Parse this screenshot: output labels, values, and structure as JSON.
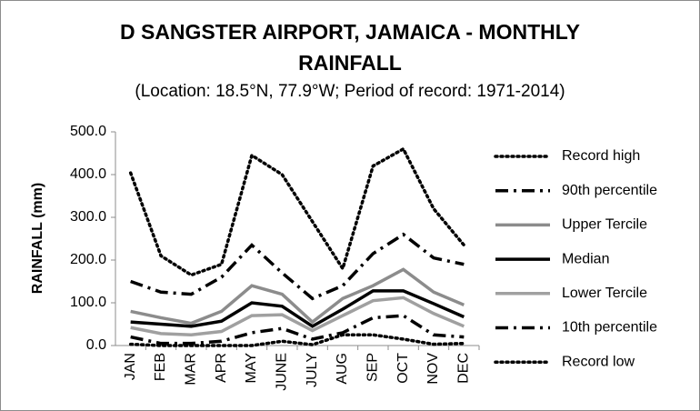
{
  "chart_data": {
    "type": "line",
    "title": "D SANGSTER AIRPORT, JAMAICA - MONTHLY RAINFALL",
    "subtitle": "(Location: 18.5°N, 77.9°W; Period of record: 1971-2014)",
    "y_label": "RAINFALL (mm)",
    "categories": [
      "JAN",
      "FEB",
      "MAR",
      "APR",
      "MAY",
      "JUNE",
      "JULY",
      "AUG",
      "SEP",
      "OCT",
      "NOV",
      "DEC"
    ],
    "ylim": [
      0,
      500
    ],
    "yticks": [
      {
        "value": 0,
        "label": "0.0"
      },
      {
        "value": 100,
        "label": "100.0"
      },
      {
        "value": 200,
        "label": "200.0"
      },
      {
        "value": 300,
        "label": "300.0"
      },
      {
        "value": 400,
        "label": "400.0"
      },
      {
        "value": 500,
        "label": "500.0"
      }
    ],
    "grid": false,
    "legend": "right",
    "series": [
      {
        "name": "Record high",
        "color": "#000000",
        "dash": "dotted",
        "values": [
          404,
          210,
          165,
          190,
          445,
          400,
          290,
          180,
          420,
          460,
          320,
          235
        ]
      },
      {
        "name": "90th percentile",
        "color": "#000000",
        "dash": "dashdot",
        "values": [
          150,
          125,
          120,
          160,
          235,
          170,
          110,
          140,
          215,
          260,
          205,
          190
        ]
      },
      {
        "name": "Upper Tercile",
        "color": "#8c8c8c",
        "dash": "solid",
        "values": [
          80,
          65,
          52,
          80,
          140,
          120,
          55,
          110,
          140,
          178,
          125,
          95
        ]
      },
      {
        "name": "Median",
        "color": "#000000",
        "dash": "solid",
        "values": [
          55,
          50,
          45,
          57,
          100,
          92,
          45,
          85,
          128,
          128,
          98,
          67
        ]
      },
      {
        "name": "Lower Tercile",
        "color": "#a0a0a0",
        "dash": "solid",
        "values": [
          42,
          28,
          25,
          33,
          70,
          72,
          35,
          70,
          105,
          112,
          75,
          45
        ]
      },
      {
        "name": "10th percentile",
        "color": "#000000",
        "dash": "dashdot",
        "values": [
          20,
          5,
          5,
          10,
          30,
          40,
          15,
          30,
          65,
          70,
          25,
          20
        ]
      },
      {
        "name": "Record low",
        "color": "#000000",
        "dash": "dotted",
        "values": [
          3,
          0,
          0,
          0,
          0,
          10,
          2,
          25,
          25,
          15,
          3,
          5
        ]
      }
    ]
  }
}
